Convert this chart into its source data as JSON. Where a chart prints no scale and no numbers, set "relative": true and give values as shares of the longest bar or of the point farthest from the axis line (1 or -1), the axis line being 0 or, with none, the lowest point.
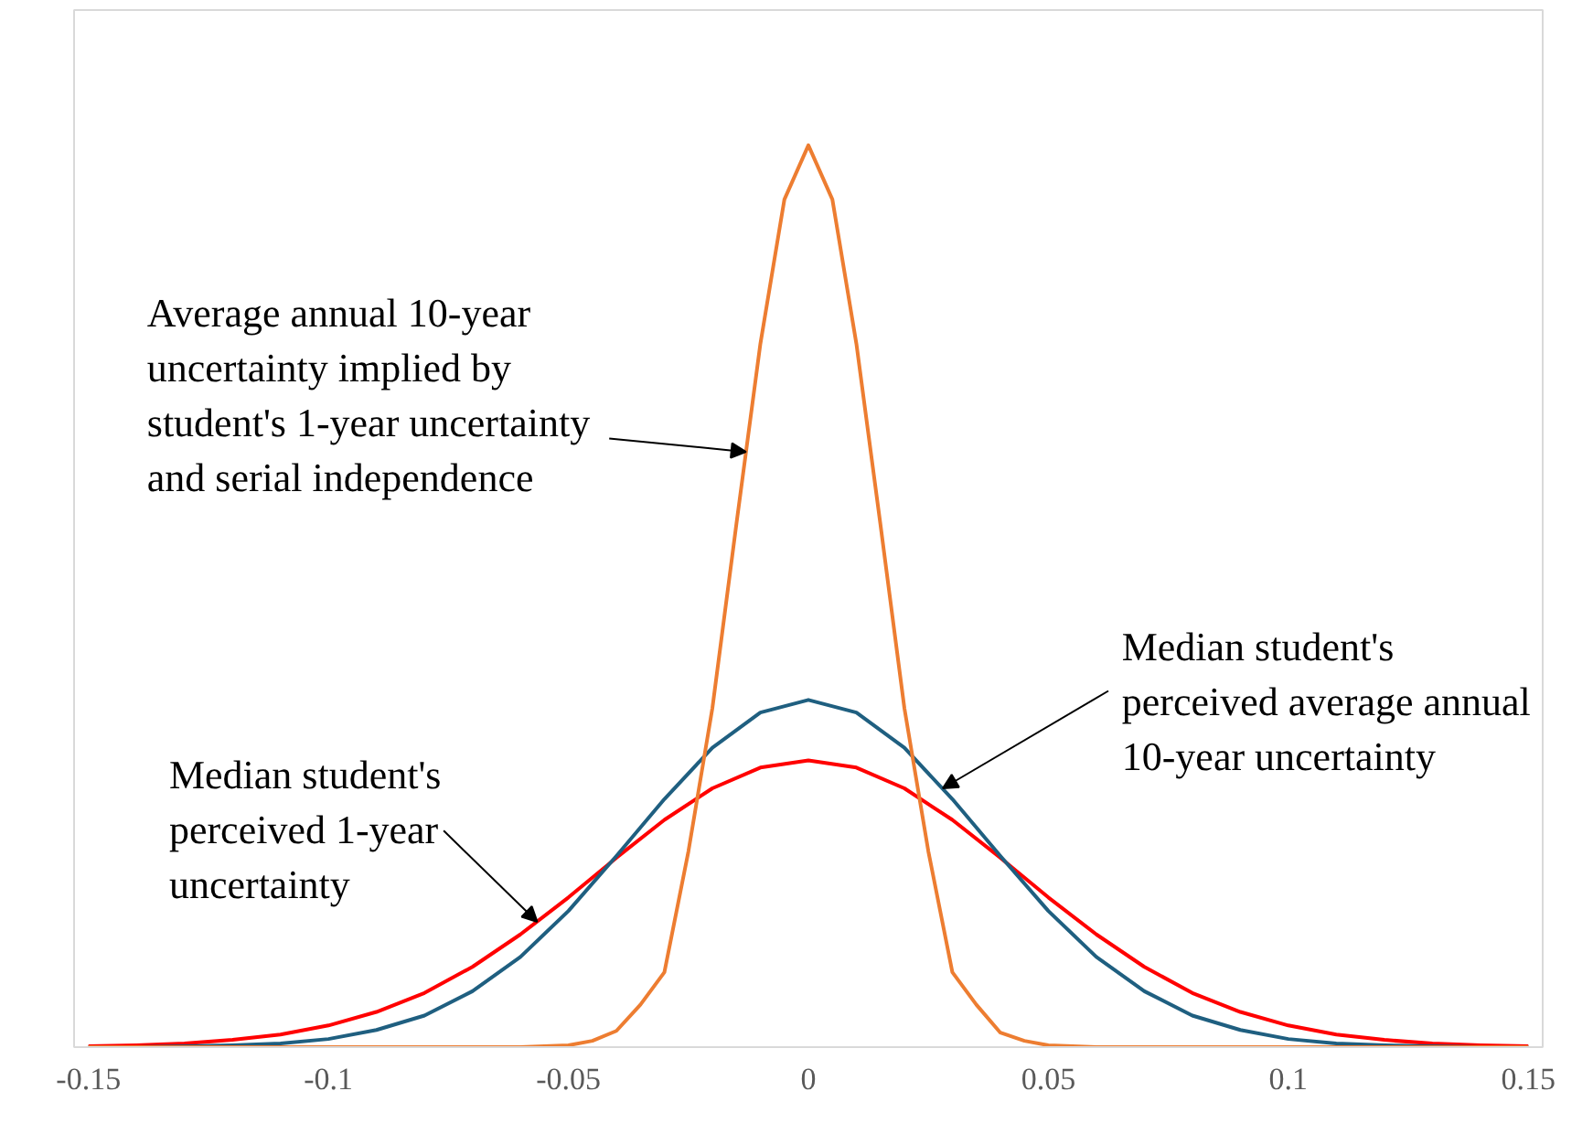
{
  "chart_data": {
    "type": "line",
    "relative": true,
    "xlim": [
      -0.153,
      0.153
    ],
    "xticks": [
      {
        "value": -0.15,
        "label": "-0.15"
      },
      {
        "value": -0.1,
        "label": "-0.1"
      },
      {
        "value": -0.05,
        "label": "-0.05"
      },
      0,
      {
        "value": 0.05,
        "label": "0.05"
      },
      {
        "value": 0.1,
        "label": "0.1"
      },
      {
        "value": 0.15,
        "label": "0.15"
      }
    ],
    "series": [
      {
        "color": "#ff0000",
        "x": [
          -0.15,
          -0.14,
          -0.13,
          -0.12,
          -0.11,
          -0.1,
          -0.09,
          -0.08,
          -0.07,
          -0.06,
          -0.05,
          -0.04,
          -0.03,
          -0.02,
          -0.01,
          0,
          0.01,
          0.02,
          0.03,
          0.04,
          0.05,
          0.06,
          0.07,
          0.08,
          0.09,
          0.1,
          0.11,
          0.12,
          0.13,
          0.14,
          0.15
        ],
        "values": [
          0.001,
          0.002,
          0.004,
          0.008,
          0.014,
          0.024,
          0.039,
          0.06,
          0.089,
          0.125,
          0.166,
          0.21,
          0.252,
          0.287,
          0.31,
          0.318,
          0.31,
          0.287,
          0.252,
          0.21,
          0.166,
          0.125,
          0.089,
          0.06,
          0.039,
          0.024,
          0.014,
          0.008,
          0.004,
          0.002,
          0.001
        ]
      },
      {
        "color": "#1f5f80",
        "x": [
          -0.15,
          -0.14,
          -0.13,
          -0.12,
          -0.11,
          -0.1,
          -0.09,
          -0.08,
          -0.07,
          -0.06,
          -0.05,
          -0.04,
          -0.03,
          -0.02,
          -0.01,
          0,
          0.01,
          0.02,
          0.03,
          0.04,
          0.05,
          0.06,
          0.07,
          0.08,
          0.09,
          0.1,
          0.11,
          0.12,
          0.13,
          0.14,
          0.15
        ],
        "values": [
          0,
          0,
          0.001,
          0.002,
          0.004,
          0.009,
          0.019,
          0.035,
          0.062,
          0.1,
          0.151,
          0.212,
          0.275,
          0.332,
          0.371,
          0.385,
          0.371,
          0.332,
          0.275,
          0.212,
          0.151,
          0.1,
          0.062,
          0.035,
          0.019,
          0.009,
          0.004,
          0.002,
          0.001,
          0,
          0
        ]
      },
      {
        "color": "#ed7d31",
        "x": [
          -0.15,
          -0.1,
          -0.06,
          -0.05,
          -0.045,
          -0.04,
          -0.035,
          -0.03,
          -0.025,
          -0.02,
          -0.015,
          -0.01,
          -0.005,
          0,
          0.005,
          0.01,
          0.015,
          0.02,
          0.025,
          0.03,
          0.035,
          0.04,
          0.045,
          0.05,
          0.06,
          0.1,
          0.15
        ],
        "values": [
          0,
          0,
          0,
          0.002,
          0.007,
          0.018,
          0.047,
          0.083,
          0.217,
          0.376,
          0.58,
          0.78,
          0.94,
          1,
          0.94,
          0.78,
          0.58,
          0.376,
          0.217,
          0.083,
          0.047,
          0.016,
          0.007,
          0.002,
          0,
          0,
          0
        ]
      }
    ],
    "annotations": [
      {
        "text": "Average annual 10-year\nuncertainty implied by\nstudent's 1-year uncertainty\nand serial independence",
        "x": -0.013,
        "y": 0.66
      },
      {
        "text": "Median student's\nperceived average annual\n10-year uncertainty",
        "x": 0.028,
        "y": 0.287
      },
      {
        "text": "Median student's\nperceived  1-year\nuncertainty",
        "x": -0.0565,
        "y": 0.139
      }
    ]
  }
}
